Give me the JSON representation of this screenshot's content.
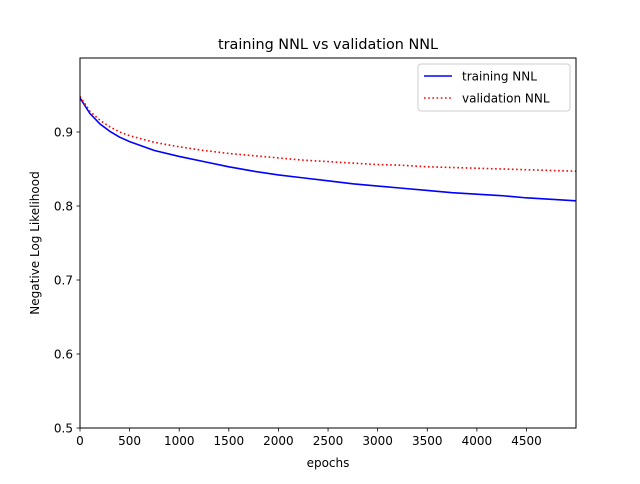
{
  "chart_data": {
    "type": "line",
    "title": "training NNL vs validation NNL",
    "xlabel": "epochs",
    "ylabel": "Negative Log Likelihood",
    "xlim": [
      0,
      4999
    ],
    "ylim": [
      0.5,
      1.0
    ],
    "xticks": [
      0,
      500,
      1000,
      1500,
      2000,
      2500,
      3000,
      3500,
      4000,
      4500
    ],
    "xtick_labels": [
      "0",
      "500",
      "1000",
      "1500",
      "2000",
      "2500",
      "3000",
      "3500",
      "4000",
      "4500"
    ],
    "yticks": [
      0.5,
      0.6,
      0.7,
      0.8,
      0.9
    ],
    "ytick_labels": [
      "0.5",
      "0.6",
      "0.7",
      "0.8",
      "0.9"
    ],
    "grid": false,
    "legend_position": "top-right",
    "x": [
      0,
      100,
      200,
      300,
      400,
      500,
      750,
      1000,
      1250,
      1500,
      1750,
      2000,
      2250,
      2500,
      2750,
      3000,
      3250,
      3500,
      3750,
      4000,
      4250,
      4500,
      4750,
      4999
    ],
    "series": [
      {
        "name": "training NNL",
        "color": "#0000ff",
        "linestyle": "solid",
        "values": [
          0.946,
          0.925,
          0.911,
          0.901,
          0.893,
          0.887,
          0.875,
          0.867,
          0.86,
          0.853,
          0.847,
          0.842,
          0.838,
          0.834,
          0.83,
          0.827,
          0.824,
          0.821,
          0.818,
          0.816,
          0.814,
          0.811,
          0.809,
          0.807
        ]
      },
      {
        "name": "validation NNL",
        "color": "#ff0000",
        "linestyle": "dotted",
        "values": [
          0.948,
          0.928,
          0.916,
          0.907,
          0.9,
          0.895,
          0.886,
          0.88,
          0.875,
          0.871,
          0.868,
          0.865,
          0.862,
          0.86,
          0.858,
          0.856,
          0.855,
          0.853,
          0.852,
          0.851,
          0.85,
          0.849,
          0.848,
          0.847
        ]
      }
    ]
  }
}
